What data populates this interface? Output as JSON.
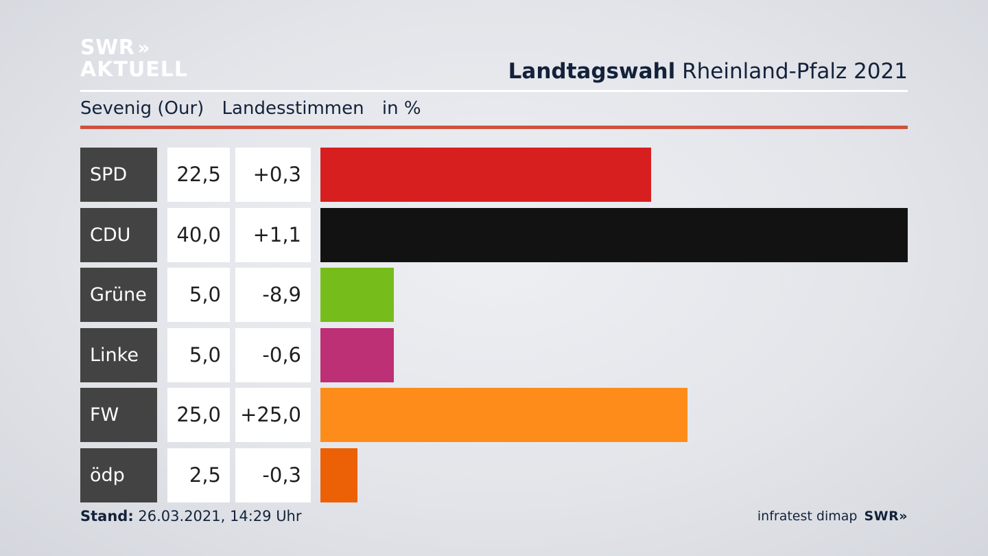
{
  "logo": {
    "line1": "SWR",
    "chevrons": "»",
    "line2": "AKTUELL"
  },
  "header": {
    "title_bold": "Landtagswahl",
    "title_rest": "Rheinland-Pfalz 2021"
  },
  "subheader": {
    "district": "Sevenig (Our)",
    "measure": "Landesstimmen",
    "unit": "in %"
  },
  "colors": {
    "accent_rule": "#d0513e",
    "label_bg": "#434343"
  },
  "chart_data": {
    "type": "bar",
    "orientation": "horizontal",
    "categories": [
      "SPD",
      "CDU",
      "Grüne",
      "Linke",
      "FW",
      "ödp"
    ],
    "values": [
      22.5,
      40.0,
      5.0,
      5.0,
      25.0,
      2.5
    ],
    "value_labels": [
      "22,5",
      "40,0",
      "5,0",
      "5,0",
      "25,0",
      "2,5"
    ],
    "changes": [
      "+0,3",
      "+1,1",
      "-8,9",
      "-0,6",
      "+25,0",
      "-0,3"
    ],
    "colors": [
      "#d71f20",
      "#121212",
      "#76bd1c",
      "#bd3075",
      "#fd8c1a",
      "#ec6106"
    ],
    "xlim": [
      0,
      40
    ],
    "grid": false
  },
  "footer": {
    "stand_label": "Stand:",
    "stand_value": "26.03.2021, 14:29 Uhr",
    "source": "infratest dimap",
    "brand": "SWR"
  }
}
